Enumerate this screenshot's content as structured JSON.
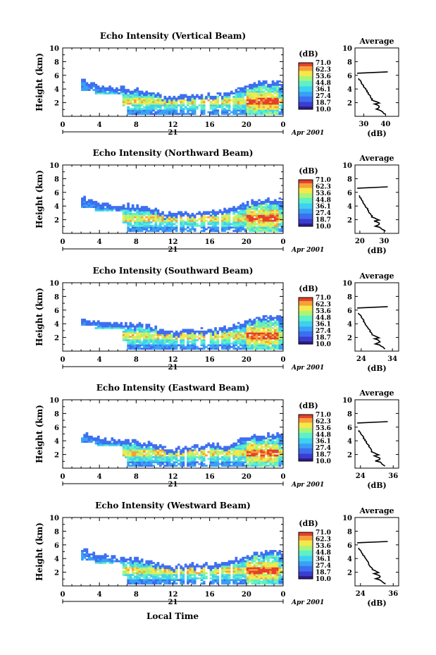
{
  "figure": {
    "xlabel": "Local Time",
    "colorbar_unit": "(dB)",
    "colorbar_ticks": [
      "71.0",
      "62.3",
      "53.6",
      "44.8",
      "36.1",
      "27.4",
      "18.7",
      "10.0"
    ],
    "colormap": [
      "#301b8c",
      "#3a3fcf",
      "#3d6ff0",
      "#3aa0f5",
      "#3fd0f0",
      "#5ef0c8",
      "#a8f57a",
      "#f5e84a",
      "#f5a03a",
      "#e5402a"
    ],
    "date_day": "21",
    "date_label": "Apr 2001",
    "avg_title": "Average",
    "avg_xlabel": "(dB)"
  },
  "chart_data": [
    {
      "type": "heatmap",
      "title": "Echo Intensity (Vertical Beam)",
      "xlabel": "",
      "ylabel": "Height (km)",
      "xlim": [
        0,
        24
      ],
      "ylim": [
        0,
        10
      ],
      "xticks": [
        "0",
        "4",
        "8",
        "12",
        "16",
        "20",
        "0"
      ],
      "yticks": [
        "2",
        "4",
        "6",
        "8",
        "10"
      ],
      "value_range_db": [
        10.0,
        71.0
      ],
      "data_approx": {
        "echo_top_km": [
          [
            2.0,
            5.5
          ],
          [
            3.0,
            5.0
          ],
          [
            4.0,
            4.5
          ],
          [
            6.0,
            4.2
          ],
          [
            8.0,
            4.0
          ],
          [
            9.5,
            3.8
          ],
          [
            11.0,
            3.0
          ],
          [
            12.0,
            2.8
          ],
          [
            14.0,
            3.2
          ],
          [
            16.0,
            3.2
          ],
          [
            18.0,
            3.5
          ],
          [
            20.0,
            4.5
          ],
          [
            22.0,
            5.0
          ],
          [
            24.0,
            5.0
          ]
        ],
        "max_intensity_layer_km": 2.2
      },
      "average_profile": {
        "xlim": [
          26,
          46
        ],
        "xticks": [
          "30",
          "40"
        ],
        "yticks": [
          "2",
          "4",
          "6",
          "8",
          "10"
        ]
      }
    },
    {
      "type": "heatmap",
      "title": "Echo Intensity (Northward Beam)",
      "xlabel": "",
      "ylabel": "Height (km)",
      "xlim": [
        0,
        24
      ],
      "ylim": [
        0,
        10
      ],
      "xticks": [
        "0",
        "4",
        "8",
        "12",
        "16",
        "20",
        "0"
      ],
      "yticks": [
        "2",
        "4",
        "6",
        "8",
        "10"
      ],
      "value_range_db": [
        10.0,
        71.0
      ],
      "data_approx": {
        "echo_top_km": [
          [
            2.0,
            5.5
          ],
          [
            3.0,
            4.8
          ],
          [
            4.0,
            4.5
          ],
          [
            6.0,
            4.2
          ],
          [
            8.0,
            4.0
          ],
          [
            9.5,
            3.8
          ],
          [
            11.0,
            3.0
          ],
          [
            12.0,
            2.8
          ],
          [
            14.0,
            3.0
          ],
          [
            16.0,
            3.2
          ],
          [
            18.0,
            3.5
          ],
          [
            20.0,
            4.5
          ],
          [
            22.0,
            5.0
          ],
          [
            24.0,
            5.0
          ]
        ],
        "max_intensity_layer_km": 2.2
      },
      "average_profile": {
        "xlim": [
          18,
          36
        ],
        "xticks": [
          "20",
          "30"
        ],
        "yticks": [
          "2",
          "4",
          "6",
          "8",
          "10"
        ]
      }
    },
    {
      "type": "heatmap",
      "title": "Echo Intensity (Southward Beam)",
      "xlabel": "",
      "ylabel": "Height (km)",
      "xlim": [
        0,
        24
      ],
      "ylim": [
        0,
        10
      ],
      "xticks": [
        "0",
        "4",
        "8",
        "12",
        "16",
        "20",
        "0"
      ],
      "yticks": [
        "2",
        "4",
        "6",
        "8",
        "10"
      ],
      "value_range_db": [
        10.0,
        71.0
      ],
      "data_approx": {
        "echo_top_km": [
          [
            2.0,
            5.0
          ],
          [
            3.0,
            4.6
          ],
          [
            4.0,
            4.4
          ],
          [
            6.0,
            4.2
          ],
          [
            8.0,
            4.0
          ],
          [
            9.5,
            3.8
          ],
          [
            11.0,
            3.0
          ],
          [
            12.0,
            2.8
          ],
          [
            14.0,
            3.2
          ],
          [
            16.0,
            3.2
          ],
          [
            18.0,
            3.5
          ],
          [
            20.0,
            4.5
          ],
          [
            22.0,
            5.0
          ],
          [
            24.0,
            5.0
          ]
        ],
        "max_intensity_layer_km": 2.2
      },
      "average_profile": {
        "xlim": [
          22,
          36
        ],
        "xticks": [
          "24",
          "34"
        ],
        "yticks": [
          "2",
          "4",
          "6",
          "8",
          "10"
        ]
      }
    },
    {
      "type": "heatmap",
      "title": "Echo Intensity (Eastward Beam)",
      "xlabel": "",
      "ylabel": "Height (km)",
      "xlim": [
        0,
        24
      ],
      "ylim": [
        0,
        10
      ],
      "xticks": [
        "0",
        "4",
        "8",
        "12",
        "16",
        "20",
        "0"
      ],
      "yticks": [
        "2",
        "4",
        "6",
        "8",
        "10"
      ],
      "value_range_db": [
        10.0,
        71.0
      ],
      "data_approx": {
        "echo_top_km": [
          [
            2.0,
            5.3
          ],
          [
            3.0,
            4.8
          ],
          [
            4.0,
            4.4
          ],
          [
            6.0,
            4.2
          ],
          [
            8.0,
            4.0
          ],
          [
            9.5,
            3.8
          ],
          [
            11.0,
            3.0
          ],
          [
            12.0,
            2.8
          ],
          [
            14.0,
            3.2
          ],
          [
            16.0,
            3.4
          ],
          [
            18.0,
            3.5
          ],
          [
            20.0,
            4.5
          ],
          [
            22.0,
            5.0
          ],
          [
            24.0,
            5.0
          ]
        ],
        "max_intensity_layer_km": 2.2
      },
      "average_profile": {
        "xlim": [
          22,
          38
        ],
        "xticks": [
          "24",
          "36"
        ],
        "yticks": [
          "2",
          "4",
          "6",
          "8",
          "10"
        ]
      }
    },
    {
      "type": "heatmap",
      "title": "Echo Intensity (Westward Beam)",
      "xlabel": "Local Time",
      "ylabel": "Height (km)",
      "xlim": [
        0,
        24
      ],
      "ylim": [
        0,
        10
      ],
      "xticks": [
        "0",
        "4",
        "8",
        "12",
        "16",
        "20",
        "0"
      ],
      "yticks": [
        "2",
        "4",
        "6",
        "8",
        "10"
      ],
      "value_range_db": [
        10.0,
        71.0
      ],
      "data_approx": {
        "echo_top_km": [
          [
            2.0,
            5.5
          ],
          [
            3.0,
            5.0
          ],
          [
            4.0,
            4.5
          ],
          [
            6.0,
            4.2
          ],
          [
            8.0,
            4.0
          ],
          [
            9.5,
            3.8
          ],
          [
            11.0,
            3.0
          ],
          [
            12.0,
            2.8
          ],
          [
            14.0,
            3.2
          ],
          [
            16.0,
            3.2
          ],
          [
            18.0,
            3.5
          ],
          [
            20.0,
            4.5
          ],
          [
            22.0,
            5.0
          ],
          [
            24.0,
            5.0
          ]
        ],
        "max_intensity_layer_km": 2.2
      },
      "average_profile": {
        "xlim": [
          22,
          38
        ],
        "xticks": [
          "24",
          "36"
        ],
        "yticks": [
          "2",
          "4",
          "6",
          "8",
          "10"
        ]
      }
    }
  ]
}
